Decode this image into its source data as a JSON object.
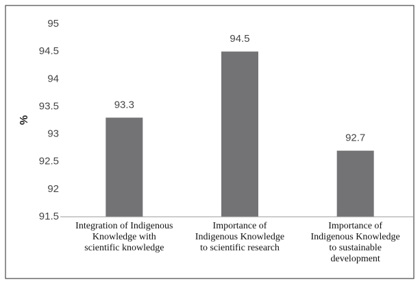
{
  "chart_data": {
    "type": "bar",
    "y_label": "%",
    "categories": [
      "Integration of Indigenous\nKnowledge with\nscientific knowledge",
      "Importance of\nIndigenous Knowledge\nto scientific research",
      "Importance of\nIndigenous Knowledge\nto sustainable\ndevelopment"
    ],
    "values": [
      93.3,
      94.5,
      92.7
    ],
    "color": "#737375",
    "ylim": [
      91.5,
      95
    ],
    "yticks": [
      91.5,
      92,
      92.5,
      93,
      93.5,
      94,
      94.5,
      95
    ],
    "grid": false
  }
}
